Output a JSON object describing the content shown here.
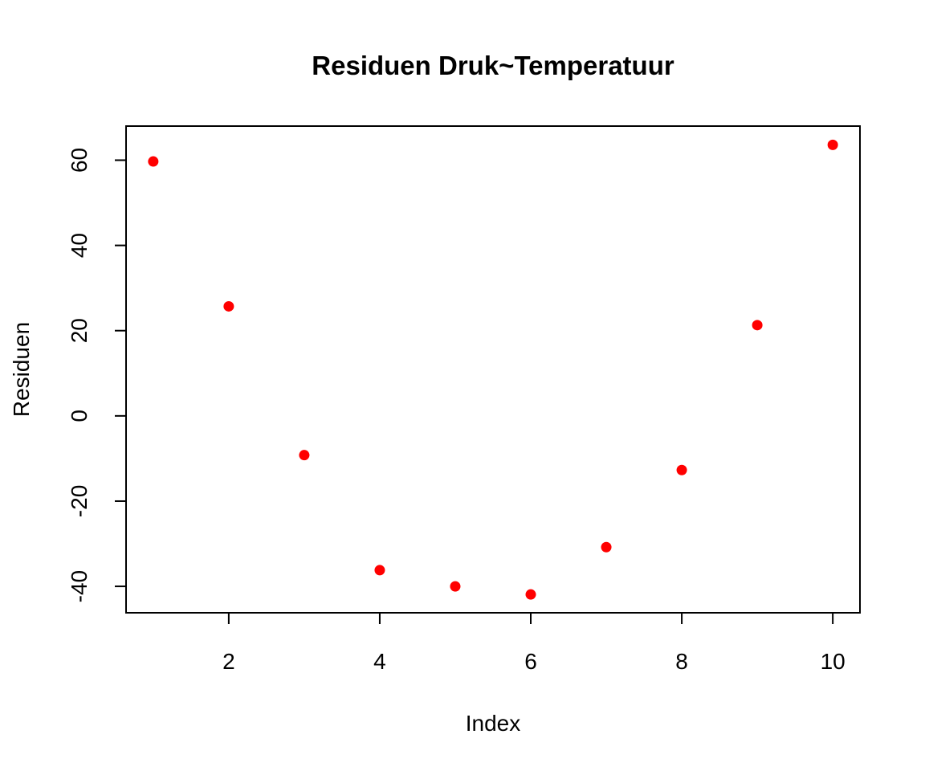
{
  "chart_data": {
    "type": "scatter",
    "title": "Residuen Druk~Temperatuur",
    "xlabel": "Index",
    "ylabel": "Residuen",
    "x": [
      1,
      2,
      3,
      4,
      5,
      6,
      7,
      8,
      9,
      10
    ],
    "y": [
      59.7,
      25.7,
      -9.2,
      -36.2,
      -40.0,
      -41.9,
      -30.8,
      -12.7,
      21.3,
      63.6
    ],
    "xlim": [
      0.64,
      10.36
    ],
    "ylim": [
      -46.2,
      68.0
    ],
    "xticks": [
      2,
      4,
      6,
      8,
      10
    ],
    "yticks": [
      -40,
      -20,
      0,
      20,
      40,
      60
    ],
    "point_color": "#ff0000",
    "grid": false,
    "legend": "none"
  }
}
